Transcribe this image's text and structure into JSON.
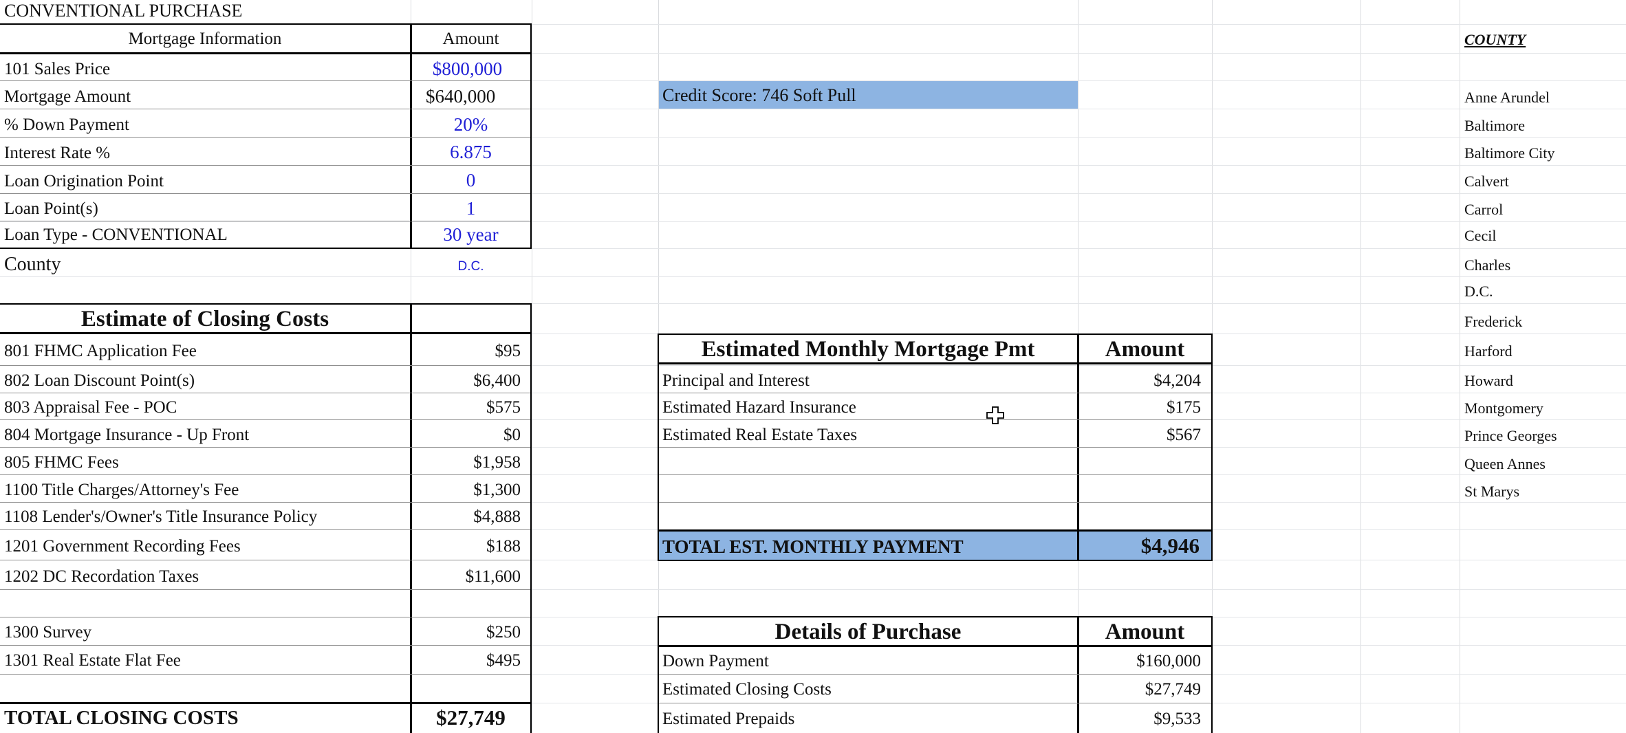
{
  "sheet_title": "CONVENTIONAL PURCHASE",
  "mortgage_info": {
    "header_label": "Mortgage Information",
    "header_amount": "Amount",
    "rows": [
      {
        "label": "101   Sales Price",
        "value": "$800,000"
      },
      {
        "label": "Mortgage Amount",
        "value": "$640,000"
      },
      {
        "label": "% Down Payment",
        "value": "20%"
      },
      {
        "label": "Interest Rate %",
        "value": "6.875"
      },
      {
        "label": "Loan Origination Point",
        "value": "0"
      },
      {
        "label": "Loan Point(s)",
        "value": "1"
      },
      {
        "label": "Loan Type - CONVENTIONAL",
        "value": "30 year"
      }
    ],
    "county_label": "County",
    "county_value": "D.C."
  },
  "closing_costs": {
    "header": "Estimate of Closing Costs",
    "rows": [
      {
        "label": "801   FHMC Application Fee",
        "value": "$95"
      },
      {
        "label": "802   Loan Discount Point(s)",
        "value": "$6,400"
      },
      {
        "label": "803  Appraisal Fee - POC",
        "value": "$575"
      },
      {
        "label": "804 Mortgage Insurance - Up Front",
        "value": "$0"
      },
      {
        "label": "805  FHMC Fees",
        "value": "$1,958"
      },
      {
        "label": "1100 Title Charges/Attorney's Fee",
        "value": "$1,300"
      },
      {
        "label": "1108  Lender's/Owner's Title Insurance Policy",
        "value": "$4,888"
      },
      {
        "label": "1201   Government Recording Fees",
        "value": "$188"
      },
      {
        "label": "1202  DC Recordation Taxes",
        "value": "$11,600"
      },
      {
        "label": "1300  Survey",
        "value": "$250"
      },
      {
        "label": "1301  Real Estate Flat Fee",
        "value": "$495"
      }
    ],
    "total_label": "TOTAL CLOSING COSTS",
    "total_value": "$27,749"
  },
  "credit_score": "Credit Score: 746 Soft Pull",
  "monthly_payment": {
    "header_label": "Estimated Monthly Mortgage Pmt",
    "header_amount": "Amount",
    "rows": [
      {
        "label": "Principal and Interest",
        "value": "$4,204"
      },
      {
        "label": "Estimated Hazard Insurance",
        "value": "$175"
      },
      {
        "label": "Estimated Real Estate Taxes",
        "value": "$567"
      }
    ],
    "total_label": "TOTAL EST. MONTHLY PAYMENT",
    "total_value": "$4,946"
  },
  "purchase_details": {
    "header_label": "Details of Purchase",
    "header_amount": "Amount",
    "rows": [
      {
        "label": "Down Payment",
        "value": "$160,000"
      },
      {
        "label": "Estimated Closing Costs",
        "value": "$27,749"
      },
      {
        "label": "Estimated Prepaids",
        "value": "$9,533"
      }
    ]
  },
  "county_list": {
    "header": "COUNTY",
    "items": [
      "Anne Arundel",
      "Baltimore",
      "Baltimore City",
      "Calvert",
      "Carrol",
      "Cecil",
      "Charles",
      "D.C.",
      "Frederick",
      "Harford",
      "Howard",
      "Montgomery",
      "Prince Georges",
      "Queen Annes",
      "St Marys"
    ]
  },
  "colors": {
    "highlight": "#8db4e2",
    "value_blue": "#1f1fd6"
  },
  "cursor_icon": "move-cursor-icon"
}
